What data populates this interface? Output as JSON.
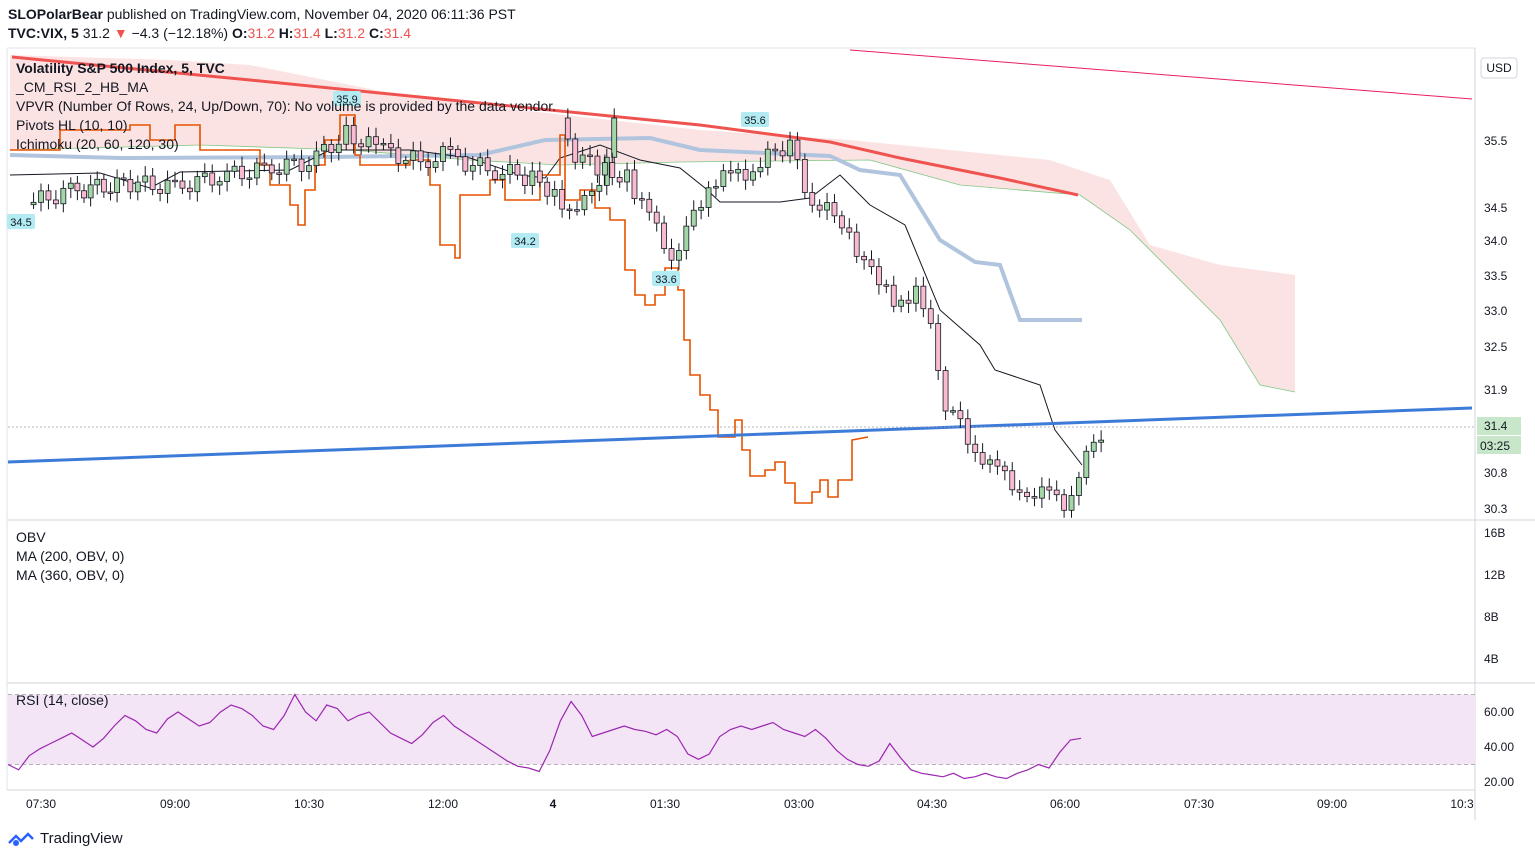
{
  "header": {
    "author": "SLOPolarBear",
    "published": "published on TradingView.com, November 04, 2020 06:11:36 PST",
    "ticker": "TVC:VIX, 5",
    "last": "31.2",
    "arrow": "▼",
    "change": "−4.3 (−12.18%)",
    "ohlc": [
      {
        "k": "O:",
        "v": "31.2"
      },
      {
        "k": "H:",
        "v": "31.4"
      },
      {
        "k": "L:",
        "v": "31.2"
      },
      {
        "k": "C:",
        "v": "31.4"
      }
    ]
  },
  "legend": {
    "symbol": "Volatility S&P 500 Index, 5, TVC",
    "indicators": [
      "_CM_RSI_2_HB_MA",
      "VPVR (Number Of Rows, 24, Up/Down, 70): No volume is provided by the data vendor.",
      "Pivots HL (10, 10)",
      "Ichimoku (20, 60, 120, 30)"
    ]
  },
  "obv_legend": [
    "OBV",
    "MA (200, OBV, 0)",
    "MA (360, OBV, 0)"
  ],
  "rsi_legend": "RSI (14, close)",
  "currency": "USD",
  "price_axis": [
    "35.5",
    "34.5",
    "34.0",
    "33.5",
    "33.0",
    "32.5",
    "31.9",
    "30.8",
    "30.3"
  ],
  "price_badge": "31.4",
  "countdown": "03:25",
  "obv_axis": [
    "16B",
    "12B",
    "8B",
    "4B"
  ],
  "rsi_axis": [
    "60.00",
    "40.00",
    "20.00"
  ],
  "time_axis": [
    "07:30",
    "09:00",
    "10:30",
    "12:00",
    "4",
    "01:30",
    "03:00",
    "04:30",
    "06:00",
    "07:30",
    "09:00",
    "10:3"
  ],
  "pivot_labels": [
    "34.5",
    "35.9",
    "34.2",
    "33.6",
    "35.6"
  ],
  "footer": "TradingView",
  "colors": {
    "up": "#a5d6a7",
    "down": "#f8bbd0",
    "red_trend": "#ef5350",
    "blue_trend": "#3d7bd9",
    "kijun": "#b0c4de",
    "cloud": "#fbdada",
    "orange": "#e65100",
    "rsi": "#9c27b0",
    "rsi_band": "#f3e5f5"
  },
  "chart_data": [
    {
      "type": "candlestick",
      "title": "Volatility S&P 500 Index, 5, TVC",
      "x_ticks": [
        "07:30",
        "09:00",
        "10:30",
        "12:00",
        "4",
        "01:30",
        "03:00",
        "04:30",
        "06:00",
        "07:30",
        "09:00",
        "10:3"
      ],
      "ylabel": "USD",
      "ylim": [
        30.2,
        36.0
      ],
      "close_path": [
        [
          "07:20",
          34.6
        ],
        [
          "07:50",
          34.8
        ],
        [
          "08:30",
          34.9
        ],
        [
          "09:00",
          34.85
        ],
        [
          "09:30",
          35.0
        ],
        [
          "10:00",
          35.1
        ],
        [
          "10:30",
          35.2
        ],
        [
          "10:55",
          35.6
        ],
        [
          "11:15",
          35.4
        ],
        [
          "11:45",
          35.2
        ],
        [
          "12:00",
          35.3
        ],
        [
          "12:30",
          35.1
        ],
        [
          "12:55",
          35.0
        ],
        [
          "13:15",
          34.8
        ],
        [
          "13:30",
          34.4
        ],
        [
          "13:45",
          35.0
        ],
        [
          "13:55",
          35.8
        ],
        [
          "00:10",
          35.4
        ],
        [
          "00:30",
          35.1
        ],
        [
          "00:50",
          35.0
        ],
        [
          "01:05",
          34.4
        ],
        [
          "01:20",
          33.9
        ],
        [
          "01:30",
          34.2
        ],
        [
          "01:45",
          34.9
        ],
        [
          "02:00",
          35.0
        ],
        [
          "02:15",
          35.1
        ],
        [
          "02:40",
          35.5
        ],
        [
          "02:55",
          34.6
        ],
        [
          "03:15",
          34.4
        ],
        [
          "03:35",
          33.6
        ],
        [
          "03:50",
          33.2
        ],
        [
          "04:05",
          33.4
        ],
        [
          "04:15",
          32.8
        ],
        [
          "04:25",
          31.8
        ],
        [
          "04:40",
          31.3
        ],
        [
          "04:55",
          30.9
        ],
        [
          "05:15",
          30.6
        ],
        [
          "05:30",
          30.5
        ],
        [
          "05:45",
          30.4
        ],
        [
          "05:55",
          30.8
        ],
        [
          "06:10",
          31.4
        ]
      ],
      "pivot_labels": [
        "34.5",
        "35.9",
        "34.2",
        "33.6",
        "35.6"
      ]
    },
    {
      "type": "line",
      "title": "OBV",
      "legend": [
        "OBV",
        "MA (200, OBV, 0)",
        "MA (360, OBV, 0)"
      ],
      "y_ticks": [
        "16B",
        "12B",
        "8B",
        "4B"
      ],
      "values": []
    },
    {
      "type": "line",
      "title": "RSI (14, close)",
      "ylim": [
        15,
        75
      ],
      "y_ticks": [
        "60.00",
        "40.00",
        "20.00"
      ],
      "band": [
        30,
        70
      ],
      "values": [
        30,
        27,
        35,
        39,
        42,
        45,
        48,
        44,
        40,
        45,
        52,
        58,
        55,
        50,
        48,
        56,
        60,
        56,
        52,
        54,
        60,
        64,
        62,
        58,
        52,
        50,
        58,
        70,
        60,
        55,
        64,
        62,
        55,
        58,
        60,
        54,
        48,
        45,
        42,
        47,
        54,
        58,
        52,
        48,
        44,
        40,
        36,
        32,
        29,
        28,
        26,
        38,
        55,
        66,
        58,
        46,
        48,
        50,
        52,
        50,
        49,
        47,
        50,
        46,
        36,
        33,
        36,
        46,
        50,
        52,
        50,
        52,
        54,
        50,
        48,
        46,
        50,
        45,
        38,
        33,
        30,
        29,
        32,
        42,
        34,
        27,
        25,
        24,
        23,
        25,
        22,
        23,
        25,
        23,
        22,
        25,
        27,
        30,
        28,
        37,
        44,
        45
      ]
    }
  ]
}
